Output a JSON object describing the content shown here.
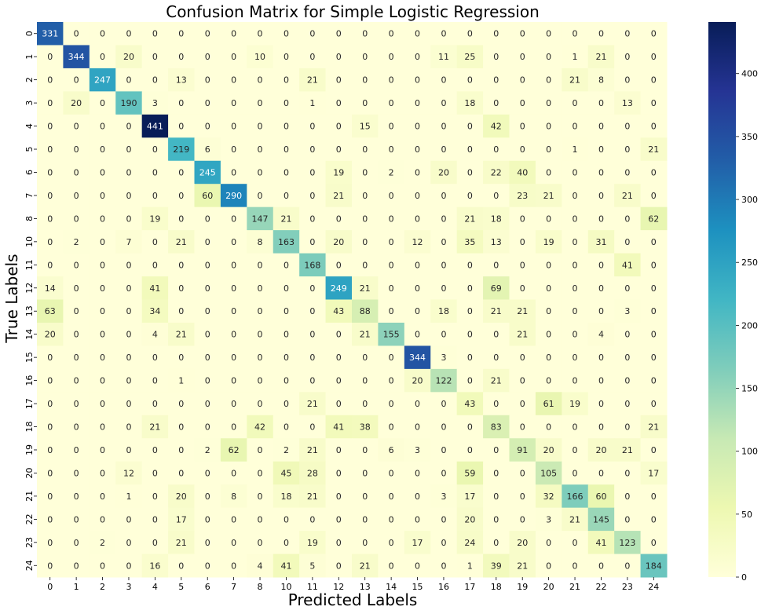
{
  "chart_data": {
    "type": "heatmap",
    "title": "Confusion Matrix for Simple Logistic Regression",
    "xlabel": "Predicted Labels",
    "ylabel": "True Labels",
    "x_categories": [
      "0",
      "1",
      "2",
      "3",
      "4",
      "5",
      "6",
      "7",
      "8",
      "10",
      "11",
      "12",
      "13",
      "14",
      "15",
      "16",
      "17",
      "18",
      "19",
      "20",
      "21",
      "22",
      "23",
      "24"
    ],
    "y_categories": [
      "0",
      "1",
      "2",
      "3",
      "4",
      "5",
      "6",
      "7",
      "8",
      "10",
      "11",
      "12",
      "13",
      "14",
      "15",
      "16",
      "17",
      "18",
      "19",
      "20",
      "21",
      "22",
      "23",
      "24"
    ],
    "values": [
      [
        331,
        0,
        0,
        0,
        0,
        0,
        0,
        0,
        0,
        0,
        0,
        0,
        0,
        0,
        0,
        0,
        0,
        0,
        0,
        0,
        0,
        0,
        0,
        0
      ],
      [
        0,
        344,
        0,
        20,
        0,
        0,
        0,
        0,
        10,
        0,
        0,
        0,
        0,
        0,
        0,
        11,
        25,
        0,
        0,
        0,
        1,
        21,
        0,
        0
      ],
      [
        0,
        0,
        247,
        0,
        0,
        13,
        0,
        0,
        0,
        0,
        21,
        0,
        0,
        0,
        0,
        0,
        0,
        0,
        0,
        0,
        21,
        8,
        0,
        0
      ],
      [
        0,
        20,
        0,
        190,
        3,
        0,
        0,
        0,
        0,
        0,
        1,
        0,
        0,
        0,
        0,
        0,
        18,
        0,
        0,
        0,
        0,
        0,
        13,
        0
      ],
      [
        0,
        0,
        0,
        0,
        441,
        0,
        0,
        0,
        0,
        0,
        0,
        0,
        15,
        0,
        0,
        0,
        0,
        42,
        0,
        0,
        0,
        0,
        0,
        0
      ],
      [
        0,
        0,
        0,
        0,
        0,
        219,
        6,
        0,
        0,
        0,
        0,
        0,
        0,
        0,
        0,
        0,
        0,
        0,
        0,
        0,
        1,
        0,
        0,
        21
      ],
      [
        0,
        0,
        0,
        0,
        0,
        0,
        245,
        0,
        0,
        0,
        0,
        19,
        0,
        2,
        0,
        20,
        0,
        22,
        40,
        0,
        0,
        0,
        0,
        0
      ],
      [
        0,
        0,
        0,
        0,
        0,
        0,
        60,
        290,
        0,
        0,
        0,
        21,
        0,
        0,
        0,
        0,
        0,
        0,
        23,
        21,
        0,
        0,
        21,
        0
      ],
      [
        0,
        0,
        0,
        0,
        19,
        0,
        0,
        0,
        147,
        21,
        0,
        0,
        0,
        0,
        0,
        0,
        21,
        18,
        0,
        0,
        0,
        0,
        0,
        62
      ],
      [
        0,
        2,
        0,
        7,
        0,
        21,
        0,
        0,
        8,
        163,
        0,
        20,
        0,
        0,
        12,
        0,
        35,
        13,
        0,
        19,
        0,
        31,
        0,
        0
      ],
      [
        0,
        0,
        0,
        0,
        0,
        0,
        0,
        0,
        0,
        0,
        168,
        0,
        0,
        0,
        0,
        0,
        0,
        0,
        0,
        0,
        0,
        0,
        41,
        0
      ],
      [
        14,
        0,
        0,
        0,
        41,
        0,
        0,
        0,
        0,
        0,
        0,
        249,
        21,
        0,
        0,
        0,
        0,
        69,
        0,
        0,
        0,
        0,
        0,
        0
      ],
      [
        63,
        0,
        0,
        0,
        34,
        0,
        0,
        0,
        0,
        0,
        0,
        43,
        88,
        0,
        0,
        18,
        0,
        21,
        21,
        0,
        0,
        0,
        3,
        0
      ],
      [
        20,
        0,
        0,
        0,
        4,
        21,
        0,
        0,
        0,
        0,
        0,
        0,
        21,
        155,
        0,
        0,
        0,
        0,
        21,
        0,
        0,
        4,
        0,
        0
      ],
      [
        0,
        0,
        0,
        0,
        0,
        0,
        0,
        0,
        0,
        0,
        0,
        0,
        0,
        0,
        344,
        3,
        0,
        0,
        0,
        0,
        0,
        0,
        0,
        0
      ],
      [
        0,
        0,
        0,
        0,
        0,
        1,
        0,
        0,
        0,
        0,
        0,
        0,
        0,
        0,
        20,
        122,
        0,
        21,
        0,
        0,
        0,
        0,
        0,
        0
      ],
      [
        0,
        0,
        0,
        0,
        0,
        0,
        0,
        0,
        0,
        0,
        21,
        0,
        0,
        0,
        0,
        0,
        43,
        0,
        0,
        61,
        19,
        0,
        0,
        0
      ],
      [
        0,
        0,
        0,
        0,
        21,
        0,
        0,
        0,
        42,
        0,
        0,
        41,
        38,
        0,
        0,
        0,
        0,
        83,
        0,
        0,
        0,
        0,
        0,
        21
      ],
      [
        0,
        0,
        0,
        0,
        0,
        0,
        2,
        62,
        0,
        2,
        21,
        0,
        0,
        6,
        3,
        0,
        0,
        0,
        91,
        20,
        0,
        20,
        21,
        0
      ],
      [
        0,
        0,
        0,
        12,
        0,
        0,
        0,
        0,
        0,
        45,
        28,
        0,
        0,
        0,
        0,
        0,
        59,
        0,
        0,
        105,
        0,
        0,
        0,
        17
      ],
      [
        0,
        0,
        0,
        1,
        0,
        20,
        0,
        8,
        0,
        18,
        21,
        0,
        0,
        0,
        0,
        3,
        17,
        0,
        0,
        32,
        166,
        60,
        0,
        0
      ],
      [
        0,
        0,
        0,
        0,
        0,
        17,
        0,
        0,
        0,
        0,
        0,
        0,
        0,
        0,
        0,
        0,
        20,
        0,
        0,
        3,
        21,
        145,
        0,
        0
      ],
      [
        0,
        0,
        2,
        0,
        0,
        21,
        0,
        0,
        0,
        0,
        19,
        0,
        0,
        0,
        17,
        0,
        24,
        0,
        20,
        0,
        0,
        41,
        123,
        0
      ],
      [
        0,
        0,
        0,
        0,
        16,
        0,
        0,
        0,
        4,
        41,
        5,
        0,
        21,
        0,
        0,
        0,
        1,
        39,
        21,
        0,
        0,
        0,
        0,
        184
      ]
    ],
    "colormap": "YlGnBu",
    "colorbar": {
      "min": 0,
      "max": 441,
      "ticks": [
        0,
        50,
        100,
        150,
        200,
        250,
        300,
        350,
        400
      ]
    },
    "grid": false,
    "legend": "colorbar-right"
  }
}
